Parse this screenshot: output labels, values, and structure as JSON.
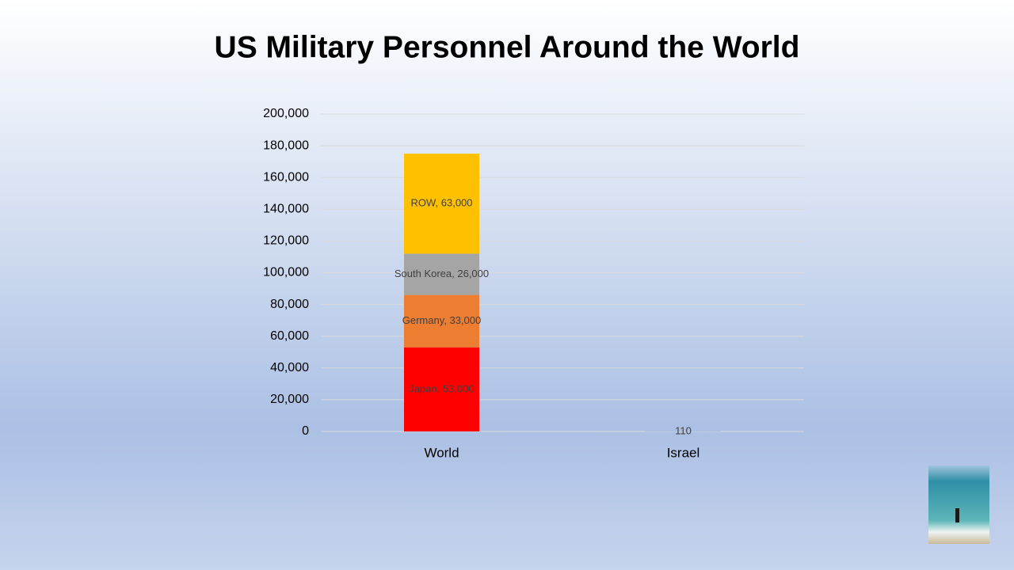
{
  "chart_data": {
    "type": "stacked_bar",
    "title": "US Military Personnel Around the World",
    "categories": [
      "World",
      "Israel"
    ],
    "series": [
      {
        "name": "Japan",
        "color": "#ff0000",
        "values": [
          53000,
          null
        ],
        "value_labels": [
          "Japan, 53,000",
          null
        ]
      },
      {
        "name": "Germany",
        "color": "#ed7d31",
        "values": [
          33000,
          null
        ],
        "value_labels": [
          "Germany, 33,000",
          null
        ]
      },
      {
        "name": "South Korea",
        "color": "#a5a5a5",
        "values": [
          26000,
          null
        ],
        "value_labels": [
          "South Korea, 26,000",
          null
        ]
      },
      {
        "name": "ROW",
        "color": "#ffc000",
        "values": [
          63000,
          null
        ],
        "value_labels": [
          "ROW, 63,000",
          null
        ]
      },
      {
        "color": "#5b9bd5",
        "values": [
          null,
          110
        ]
      }
    ],
    "ylim": [
      0,
      200000
    ],
    "yticks": [
      0,
      {
        "value": 20000,
        "label": "20,000"
      },
      {
        "value": 40000,
        "label": "40,000"
      },
      {
        "value": 60000,
        "label": "60,000"
      },
      {
        "value": 80000,
        "label": "80,000"
      },
      {
        "value": 100000,
        "label": "100,000"
      },
      {
        "value": 120000,
        "label": "120,000"
      },
      {
        "value": 140000,
        "label": "140,000"
      },
      {
        "value": 160000,
        "label": "160,000"
      },
      {
        "value": 180000,
        "label": "180,000"
      },
      {
        "value": 200000,
        "label": "200,000"
      }
    ],
    "grid": true
  }
}
